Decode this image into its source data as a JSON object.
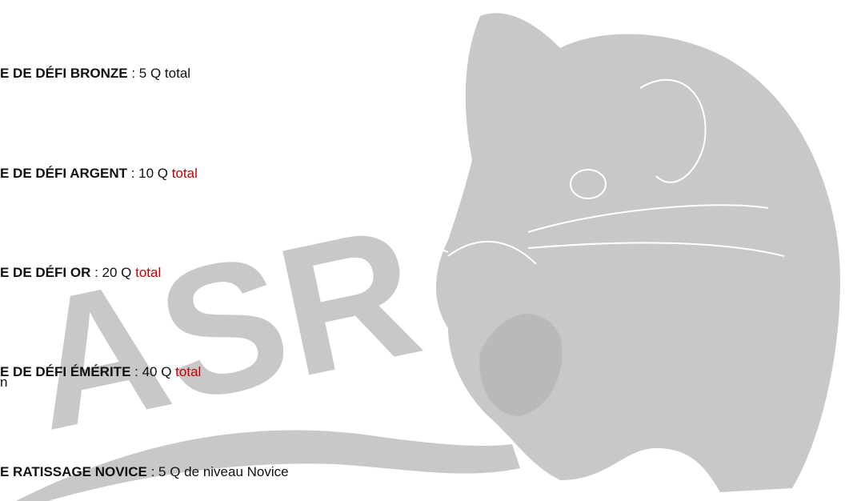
{
  "watermark": "ASR",
  "items": [
    {
      "name": "E DE DÉFI BRONZE",
      "rest": " : 5 Q total"
    },
    {
      "name": "E DE DÉFI ARGENT",
      "rest": " : 10 Q ",
      "highlight": "total"
    },
    {
      "name": "E DE DÉFI OR",
      "rest": " : 20 Q ",
      "highlight": "total"
    },
    {
      "name": "E DE DÉFI ÉMÉRITE",
      "rest": " : 40 Q ",
      "highlight": "total",
      "continuation": "n"
    },
    {
      "name": "E RATISSAGE NOVICE",
      "rest": " : 5 Q de niveau Novice"
    }
  ]
}
